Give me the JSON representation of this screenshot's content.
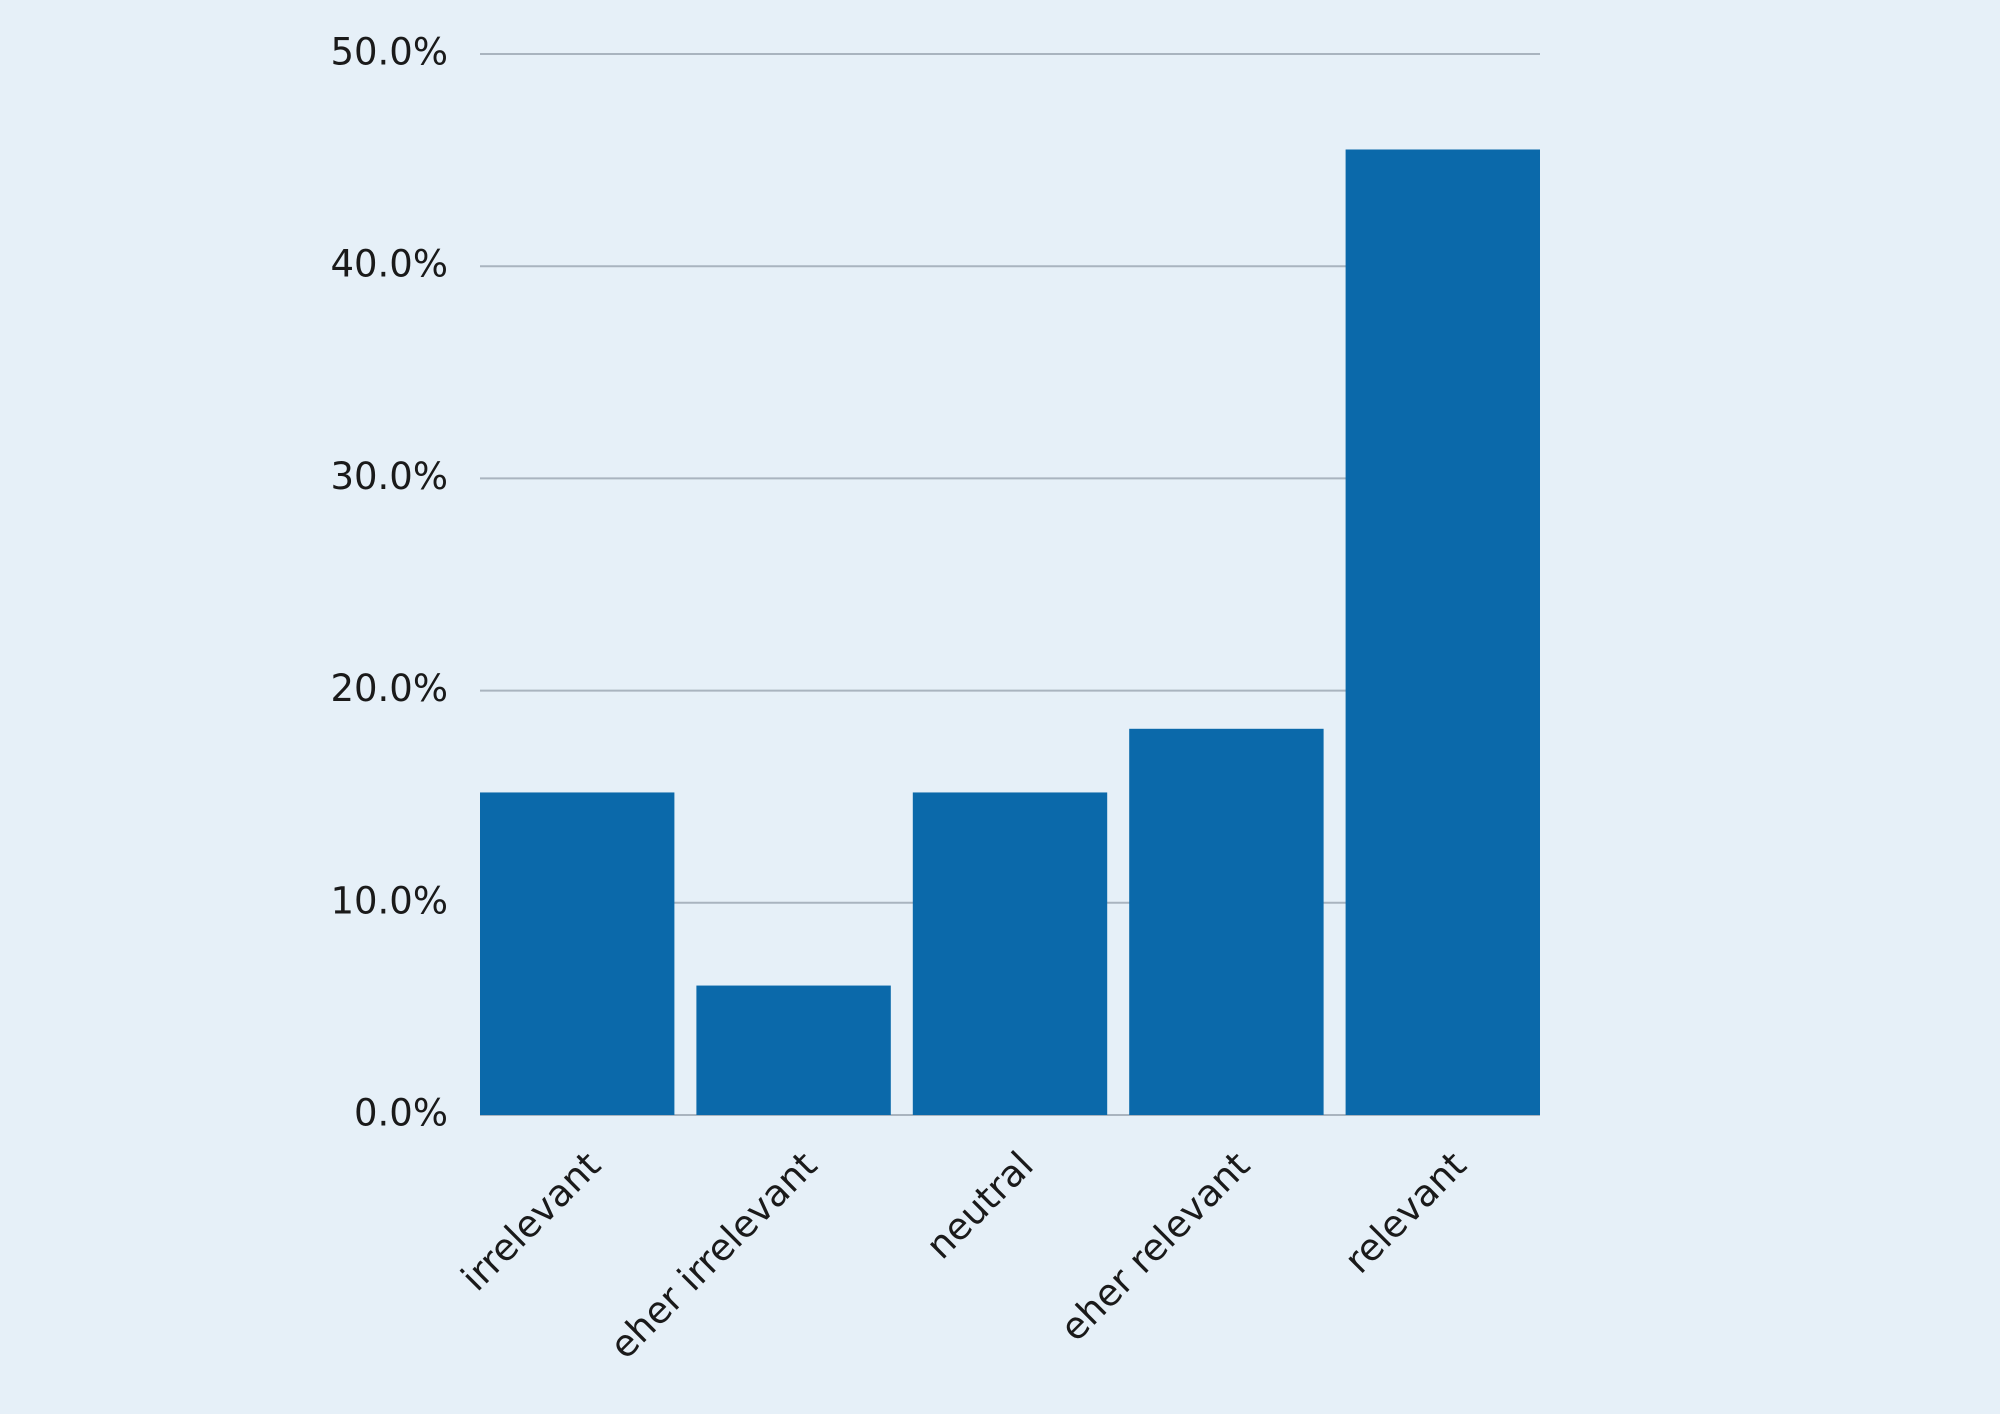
{
  "chart_data": {
    "type": "bar",
    "categories": [
      "irrelevant",
      "eher irrelevant",
      "neutral",
      "eher relevant",
      "relevant"
    ],
    "values": [
      15.2,
      6.1,
      15.2,
      18.2,
      45.5
    ],
    "color": "#0b69aa",
    "ylim": [
      0,
      50
    ],
    "yticks": [
      {
        "value": 0,
        "label": "0.0%"
      },
      {
        "value": 10,
        "label": "10.0%"
      },
      {
        "value": 20,
        "label": "20.0%"
      },
      {
        "value": 30,
        "label": "30.0%"
      },
      {
        "value": 40,
        "label": "40.0%"
      },
      {
        "value": 50,
        "label": "50.0%"
      }
    ],
    "grid": true
  }
}
